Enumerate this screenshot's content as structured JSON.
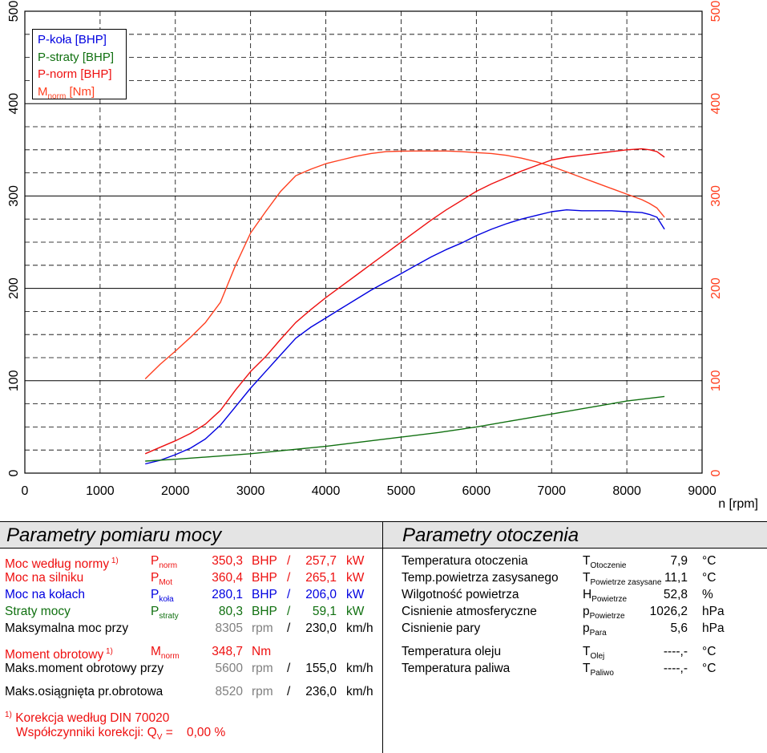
{
  "chart_data": {
    "type": "line",
    "xlabel": "n [rpm]",
    "xlim": [
      0,
      9000
    ],
    "ylim_left": [
      0,
      500
    ],
    "ylim_right": [
      0,
      500
    ],
    "x_ticks": [
      "0",
      "1000",
      "2000",
      "3000",
      "4000",
      "5000",
      "6000",
      "7000",
      "8000",
      "9000"
    ],
    "y_ticks_left": [
      "0",
      "100",
      "200",
      "300",
      "400",
      "500"
    ],
    "y_ticks_right": [
      "0",
      "100",
      "200",
      "300",
      "400",
      "500"
    ],
    "grid": true,
    "legend_position": "top-left",
    "series": [
      {
        "name": "P-koła [BHP]",
        "color": "#0000e0",
        "points": [
          [
            1600,
            10
          ],
          [
            1800,
            14
          ],
          [
            2000,
            20
          ],
          [
            2200,
            27
          ],
          [
            2400,
            37
          ],
          [
            2600,
            52
          ],
          [
            2800,
            72
          ],
          [
            3000,
            92
          ],
          [
            3200,
            110
          ],
          [
            3400,
            128
          ],
          [
            3600,
            146
          ],
          [
            3800,
            158
          ],
          [
            4000,
            168
          ],
          [
            4200,
            178
          ],
          [
            4400,
            188
          ],
          [
            4600,
            198
          ],
          [
            4800,
            207
          ],
          [
            5000,
            216
          ],
          [
            5200,
            225
          ],
          [
            5400,
            234
          ],
          [
            5600,
            242
          ],
          [
            5800,
            249
          ],
          [
            6000,
            257
          ],
          [
            6200,
            264
          ],
          [
            6400,
            270
          ],
          [
            6600,
            275
          ],
          [
            6800,
            279
          ],
          [
            7000,
            283
          ],
          [
            7200,
            285
          ],
          [
            7400,
            284
          ],
          [
            7600,
            284
          ],
          [
            7800,
            284
          ],
          [
            8000,
            283
          ],
          [
            8200,
            282
          ],
          [
            8300,
            280
          ],
          [
            8400,
            277
          ],
          [
            8500,
            264
          ]
        ]
      },
      {
        "name": "P-straty [BHP]",
        "color": "#107010",
        "points": [
          [
            1600,
            13
          ],
          [
            2000,
            15
          ],
          [
            2500,
            18
          ],
          [
            3000,
            21
          ],
          [
            3500,
            25
          ],
          [
            4000,
            29
          ],
          [
            4500,
            34
          ],
          [
            5000,
            39
          ],
          [
            5500,
            44
          ],
          [
            6000,
            50
          ],
          [
            6500,
            57
          ],
          [
            7000,
            64
          ],
          [
            7500,
            71
          ],
          [
            8000,
            78
          ],
          [
            8300,
            81
          ],
          [
            8500,
            83
          ]
        ]
      },
      {
        "name": "P-norm [BHP]",
        "color": "#ee1010",
        "points": [
          [
            1600,
            21
          ],
          [
            1800,
            28
          ],
          [
            2000,
            35
          ],
          [
            2200,
            43
          ],
          [
            2400,
            53
          ],
          [
            2600,
            68
          ],
          [
            2800,
            90
          ],
          [
            3000,
            110
          ],
          [
            3200,
            126
          ],
          [
            3400,
            145
          ],
          [
            3600,
            163
          ],
          [
            3800,
            177
          ],
          [
            4000,
            190
          ],
          [
            4200,
            202
          ],
          [
            4400,
            214
          ],
          [
            4600,
            226
          ],
          [
            4800,
            238
          ],
          [
            5000,
            250
          ],
          [
            5200,
            262
          ],
          [
            5400,
            274
          ],
          [
            5600,
            285
          ],
          [
            5800,
            295
          ],
          [
            6000,
            305
          ],
          [
            6200,
            313
          ],
          [
            6400,
            320
          ],
          [
            6600,
            327
          ],
          [
            6800,
            333
          ],
          [
            7000,
            339
          ],
          [
            7200,
            342
          ],
          [
            7400,
            344
          ],
          [
            7600,
            346
          ],
          [
            7800,
            348
          ],
          [
            8000,
            350
          ],
          [
            8200,
            351
          ],
          [
            8305,
            350
          ],
          [
            8400,
            348
          ],
          [
            8500,
            342
          ]
        ]
      },
      {
        "name": "Mnorm [Nm]",
        "color": "#ff4020",
        "points": [
          [
            1600,
            102
          ],
          [
            1800,
            118
          ],
          [
            2000,
            132
          ],
          [
            2200,
            147
          ],
          [
            2400,
            163
          ],
          [
            2600,
            185
          ],
          [
            2800,
            225
          ],
          [
            3000,
            260
          ],
          [
            3200,
            283
          ],
          [
            3400,
            305
          ],
          [
            3600,
            322
          ],
          [
            3800,
            329
          ],
          [
            4000,
            335
          ],
          [
            4200,
            339
          ],
          [
            4400,
            343
          ],
          [
            4600,
            346
          ],
          [
            4800,
            348
          ],
          [
            5000,
            348.5
          ],
          [
            5200,
            348.7
          ],
          [
            5400,
            348.7
          ],
          [
            5600,
            348.7
          ],
          [
            5800,
            348
          ],
          [
            6000,
            347
          ],
          [
            6200,
            346
          ],
          [
            6400,
            344
          ],
          [
            6600,
            341
          ],
          [
            6800,
            337
          ],
          [
            7000,
            332
          ],
          [
            7200,
            326
          ],
          [
            7400,
            320
          ],
          [
            7600,
            314
          ],
          [
            7800,
            308
          ],
          [
            8000,
            302
          ],
          [
            8200,
            296
          ],
          [
            8300,
            292
          ],
          [
            8400,
            287
          ],
          [
            8500,
            277
          ]
        ]
      }
    ]
  },
  "legend": {
    "p_kola": "P-koła [BHP]",
    "p_straty": "P-straty [BHP]",
    "p_norm": "P-norm [BHP]",
    "m_norm_main": "M",
    "m_norm_sub": "norm",
    "m_norm_unit": " [Nm]"
  },
  "left_panel": {
    "title": "Parametry pomiaru mocy",
    "rows": [
      {
        "label": "Moc według normy",
        "note": "1)",
        "sym": "P",
        "sym_sub": "norm",
        "v1": "350,3",
        "u1": "BHP",
        "sep": "/",
        "v2": "257,7",
        "u2": "kW"
      },
      {
        "label": "Moc na silniku",
        "note": "",
        "sym": "P",
        "sym_sub": "Mot",
        "v1": "360,4",
        "u1": "BHP",
        "sep": "/",
        "v2": "265,1",
        "u2": "kW"
      },
      {
        "label": "Moc na kołach",
        "note": "",
        "sym": "P",
        "sym_sub": "koła",
        "v1": "280,1",
        "u1": "BHP",
        "sep": "/",
        "v2": "206,0",
        "u2": "kW"
      },
      {
        "label": "Straty mocy",
        "note": "",
        "sym": "P",
        "sym_sub": "straty",
        "v1": "80,3",
        "u1": "BHP",
        "sep": "/",
        "v2": "59,1",
        "u2": "kW"
      },
      {
        "label": "Maksymalna moc przy",
        "note": "",
        "sym": "",
        "sym_sub": "",
        "v1": "8305",
        "u1": "rpm",
        "sep": "/",
        "v2": "230,0",
        "u2": "km/h"
      },
      {
        "label": "Moment obrotowy",
        "note": "1)",
        "sym": "M",
        "sym_sub": "norm",
        "v1": "348,7",
        "u1": "Nm",
        "sep": "",
        "v2": "",
        "u2": ""
      },
      {
        "label": "Maks.moment obrotowy przy",
        "note": "",
        "sym": "",
        "sym_sub": "",
        "v1": "5600",
        "u1": "rpm",
        "sep": "/",
        "v2": "155,0",
        "u2": "km/h"
      },
      {
        "label": "Maks.osiągnięta pr.obrotowa",
        "note": "",
        "sym": "",
        "sym_sub": "",
        "v1": "8520",
        "u1": "rpm",
        "sep": "/",
        "v2": "236,0",
        "u2": "km/h"
      }
    ],
    "footnote_mark": "1)",
    "footnote_line1": "Korekcja według DIN 70020",
    "footnote_line2": "Współczynniki korekcji: Q",
    "footnote_sub": "V",
    "footnote_value": " =    0,00 %"
  },
  "right_panel": {
    "title": "Parametry otoczenia",
    "rows": [
      {
        "label": "Temperatura otoczenia",
        "sym": "T",
        "sym_sub": "Otoczenie",
        "value": "7,9",
        "unit": "°C"
      },
      {
        "label": "Temp.powietrza zasysanego",
        "sym": "T",
        "sym_sub": "Powietrze zasysane",
        "value": "11,1",
        "unit": "°C"
      },
      {
        "label": "Wilgotność powietrza",
        "sym": "H",
        "sym_sub": "Powietrze",
        "value": "52,8",
        "unit": "%"
      },
      {
        "label": "Cisnienie atmosferyczne",
        "sym": "p",
        "sym_sub": "Powietrze",
        "value": "1026,2",
        "unit": "hPa"
      },
      {
        "label": "Cisnienie pary",
        "sym": "p",
        "sym_sub": "Para",
        "value": "5,6",
        "unit": "hPa"
      },
      {
        "label": "Temperatura oleju",
        "sym": "T",
        "sym_sub": "Olej",
        "value": "----,-",
        "unit": "°C"
      },
      {
        "label": "Temperatura paliwa",
        "sym": "T",
        "sym_sub": "Paliwo",
        "value": "----,-",
        "unit": "°C"
      }
    ]
  },
  "colors": {
    "red": "#ee1010",
    "blue": "#0000e0",
    "green": "#107010",
    "orange": "#ff4020",
    "grey": "#7f7f7f"
  }
}
